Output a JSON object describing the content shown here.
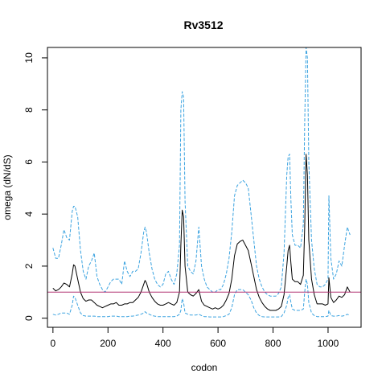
{
  "chart_data": {
    "type": "line",
    "title": "Rv3512",
    "xlabel": "codon",
    "ylabel": "omega (dN/dS)",
    "xlim": [
      -20,
      1120
    ],
    "ylim": [
      -0.35,
      10.4
    ],
    "x_ticks": [
      0,
      200,
      400,
      600,
      800,
      1000
    ],
    "y_ticks": [
      0,
      2,
      4,
      6,
      8,
      10
    ],
    "reference_line": {
      "y": 1,
      "color": "#b03070"
    },
    "series": [
      {
        "key": "omega",
        "color": "#000000",
        "style": "solid",
        "x": [
          0,
          10,
          20,
          30,
          40,
          50,
          60,
          70,
          75,
          80,
          90,
          100,
          110,
          120,
          130,
          140,
          150,
          160,
          170,
          180,
          190,
          200,
          210,
          220,
          230,
          240,
          250,
          260,
          270,
          280,
          290,
          300,
          310,
          320,
          330,
          335,
          340,
          350,
          360,
          370,
          380,
          390,
          400,
          410,
          420,
          430,
          440,
          450,
          460,
          465,
          470,
          475,
          480,
          490,
          500,
          510,
          520,
          530,
          540,
          550,
          560,
          570,
          580,
          590,
          600,
          610,
          620,
          630,
          640,
          650,
          660,
          670,
          680,
          690,
          700,
          710,
          720,
          730,
          740,
          750,
          760,
          770,
          780,
          790,
          800,
          810,
          820,
          830,
          840,
          850,
          855,
          860,
          865,
          870,
          880,
          890,
          900,
          910,
          915,
          920,
          925,
          930,
          940,
          950,
          960,
          970,
          980,
          990,
          1000,
          1003,
          1010,
          1020,
          1030,
          1040,
          1050,
          1060,
          1070,
          1080
        ],
        "y": [
          1.15,
          1.05,
          1.1,
          1.2,
          1.35,
          1.3,
          1.2,
          1.7,
          2.05,
          2.0,
          1.5,
          1.0,
          0.75,
          0.65,
          0.7,
          0.7,
          0.6,
          0.5,
          0.45,
          0.4,
          0.45,
          0.5,
          0.55,
          0.55,
          0.6,
          0.5,
          0.5,
          0.55,
          0.55,
          0.6,
          0.6,
          0.7,
          0.8,
          1.0,
          1.3,
          1.45,
          1.35,
          1.0,
          0.8,
          0.65,
          0.55,
          0.5,
          0.5,
          0.55,
          0.6,
          0.55,
          0.5,
          0.6,
          1.0,
          2.8,
          4.15,
          3.9,
          2.0,
          1.0,
          0.9,
          0.85,
          0.95,
          1.1,
          0.65,
          0.5,
          0.45,
          0.4,
          0.35,
          0.4,
          0.35,
          0.4,
          0.5,
          0.7,
          0.95,
          1.5,
          2.4,
          2.85,
          2.95,
          3.0,
          2.8,
          2.6,
          2.1,
          1.6,
          1.1,
          0.8,
          0.6,
          0.45,
          0.35,
          0.3,
          0.3,
          0.3,
          0.35,
          0.45,
          0.9,
          2.0,
          2.6,
          2.8,
          2.1,
          1.5,
          1.4,
          1.4,
          1.3,
          1.65,
          3.5,
          6.3,
          5.5,
          3.0,
          1.5,
          0.9,
          0.55,
          0.55,
          0.55,
          0.5,
          0.55,
          1.55,
          0.8,
          0.6,
          0.7,
          0.85,
          0.8,
          0.9,
          1.2,
          1.0
        ]
      },
      {
        "key": "upper",
        "color": "#3ba3e0",
        "style": "dashed",
        "x": [
          0,
          10,
          20,
          30,
          40,
          50,
          60,
          70,
          75,
          80,
          90,
          100,
          110,
          120,
          130,
          140,
          150,
          160,
          170,
          180,
          190,
          200,
          210,
          220,
          230,
          240,
          250,
          260,
          270,
          280,
          290,
          300,
          310,
          320,
          330,
          335,
          340,
          350,
          360,
          370,
          380,
          390,
          400,
          410,
          420,
          430,
          440,
          450,
          460,
          465,
          470,
          475,
          480,
          490,
          500,
          510,
          520,
          530,
          540,
          550,
          560,
          570,
          580,
          590,
          600,
          610,
          620,
          630,
          640,
          650,
          660,
          670,
          680,
          690,
          700,
          710,
          720,
          730,
          740,
          750,
          760,
          770,
          780,
          790,
          800,
          810,
          820,
          830,
          840,
          850,
          855,
          860,
          865,
          870,
          880,
          890,
          900,
          910,
          915,
          920,
          925,
          930,
          940,
          950,
          960,
          970,
          980,
          990,
          1000,
          1003,
          1010,
          1020,
          1030,
          1040,
          1050,
          1060,
          1070,
          1080
        ],
        "y": [
          2.7,
          2.3,
          2.3,
          2.8,
          3.4,
          3.1,
          3.0,
          4.1,
          4.3,
          4.3,
          3.9,
          2.6,
          1.8,
          1.5,
          2.0,
          2.2,
          2.5,
          1.6,
          1.3,
          1.1,
          1.0,
          1.2,
          1.4,
          1.5,
          1.5,
          1.5,
          1.3,
          2.2,
          1.8,
          1.6,
          1.8,
          1.8,
          1.9,
          2.5,
          3.3,
          3.5,
          3.3,
          2.5,
          1.9,
          1.5,
          1.3,
          1.2,
          1.3,
          1.7,
          1.8,
          1.5,
          1.3,
          1.7,
          2.8,
          8.0,
          8.7,
          8.5,
          4.5,
          2.0,
          1.8,
          1.7,
          2.2,
          3.5,
          2.0,
          1.5,
          1.2,
          1.1,
          1.0,
          1.0,
          1.1,
          1.1,
          1.3,
          1.7,
          2.3,
          3.3,
          4.7,
          5.1,
          5.2,
          5.3,
          5.2,
          5.0,
          4.0,
          3.0,
          2.0,
          1.5,
          1.2,
          1.0,
          0.9,
          0.85,
          0.85,
          0.85,
          0.95,
          1.2,
          2.5,
          5.5,
          6.2,
          6.3,
          4.5,
          3.2,
          2.8,
          2.8,
          2.7,
          3.6,
          7.5,
          10.4,
          10.0,
          6.0,
          3.0,
          1.9,
          1.3,
          1.2,
          1.2,
          1.3,
          1.5,
          4.7,
          2.3,
          1.5,
          1.7,
          2.2,
          2.0,
          2.8,
          3.5,
          3.2
        ]
      },
      {
        "key": "lower",
        "color": "#3ba3e0",
        "style": "dashed",
        "x": [
          0,
          10,
          20,
          30,
          40,
          50,
          60,
          70,
          75,
          80,
          90,
          100,
          110,
          120,
          130,
          140,
          150,
          160,
          170,
          180,
          190,
          200,
          210,
          220,
          230,
          240,
          250,
          260,
          270,
          280,
          290,
          300,
          310,
          320,
          330,
          335,
          340,
          350,
          360,
          370,
          380,
          390,
          400,
          410,
          420,
          430,
          440,
          450,
          460,
          465,
          470,
          475,
          480,
          490,
          500,
          510,
          520,
          530,
          540,
          550,
          560,
          570,
          580,
          590,
          600,
          610,
          620,
          630,
          640,
          650,
          660,
          670,
          680,
          690,
          700,
          710,
          720,
          730,
          740,
          750,
          760,
          770,
          780,
          790,
          800,
          810,
          820,
          830,
          840,
          850,
          855,
          860,
          865,
          870,
          880,
          890,
          900,
          910,
          915,
          920,
          925,
          930,
          940,
          950,
          960,
          970,
          980,
          990,
          1000,
          1003,
          1010,
          1020,
          1030,
          1040,
          1050,
          1060,
          1070,
          1080
        ],
        "y": [
          0.15,
          0.12,
          0.15,
          0.2,
          0.2,
          0.2,
          0.15,
          0.5,
          0.85,
          0.8,
          0.5,
          0.2,
          0.1,
          0.08,
          0.08,
          0.08,
          0.08,
          0.06,
          0.06,
          0.06,
          0.06,
          0.06,
          0.08,
          0.08,
          0.08,
          0.06,
          0.06,
          0.06,
          0.06,
          0.08,
          0.08,
          0.1,
          0.12,
          0.15,
          0.2,
          0.25,
          0.2,
          0.15,
          0.1,
          0.08,
          0.06,
          0.06,
          0.06,
          0.06,
          0.06,
          0.06,
          0.06,
          0.08,
          0.15,
          0.3,
          0.75,
          0.6,
          0.2,
          0.15,
          0.12,
          0.12,
          0.12,
          0.15,
          0.1,
          0.06,
          0.06,
          0.05,
          0.05,
          0.05,
          0.05,
          0.05,
          0.06,
          0.1,
          0.15,
          0.4,
          0.9,
          1.1,
          1.1,
          1.1,
          1.0,
          0.9,
          0.7,
          0.4,
          0.2,
          0.1,
          0.06,
          0.05,
          0.05,
          0.05,
          0.05,
          0.05,
          0.05,
          0.06,
          0.2,
          0.5,
          0.8,
          0.9,
          0.6,
          0.35,
          0.3,
          0.3,
          0.3,
          0.35,
          1.0,
          1.5,
          1.3,
          0.6,
          0.2,
          0.1,
          0.06,
          0.06,
          0.06,
          0.06,
          0.08,
          0.3,
          0.1,
          0.08,
          0.08,
          0.1,
          0.08,
          0.1,
          0.15,
          0.1
        ]
      }
    ]
  }
}
